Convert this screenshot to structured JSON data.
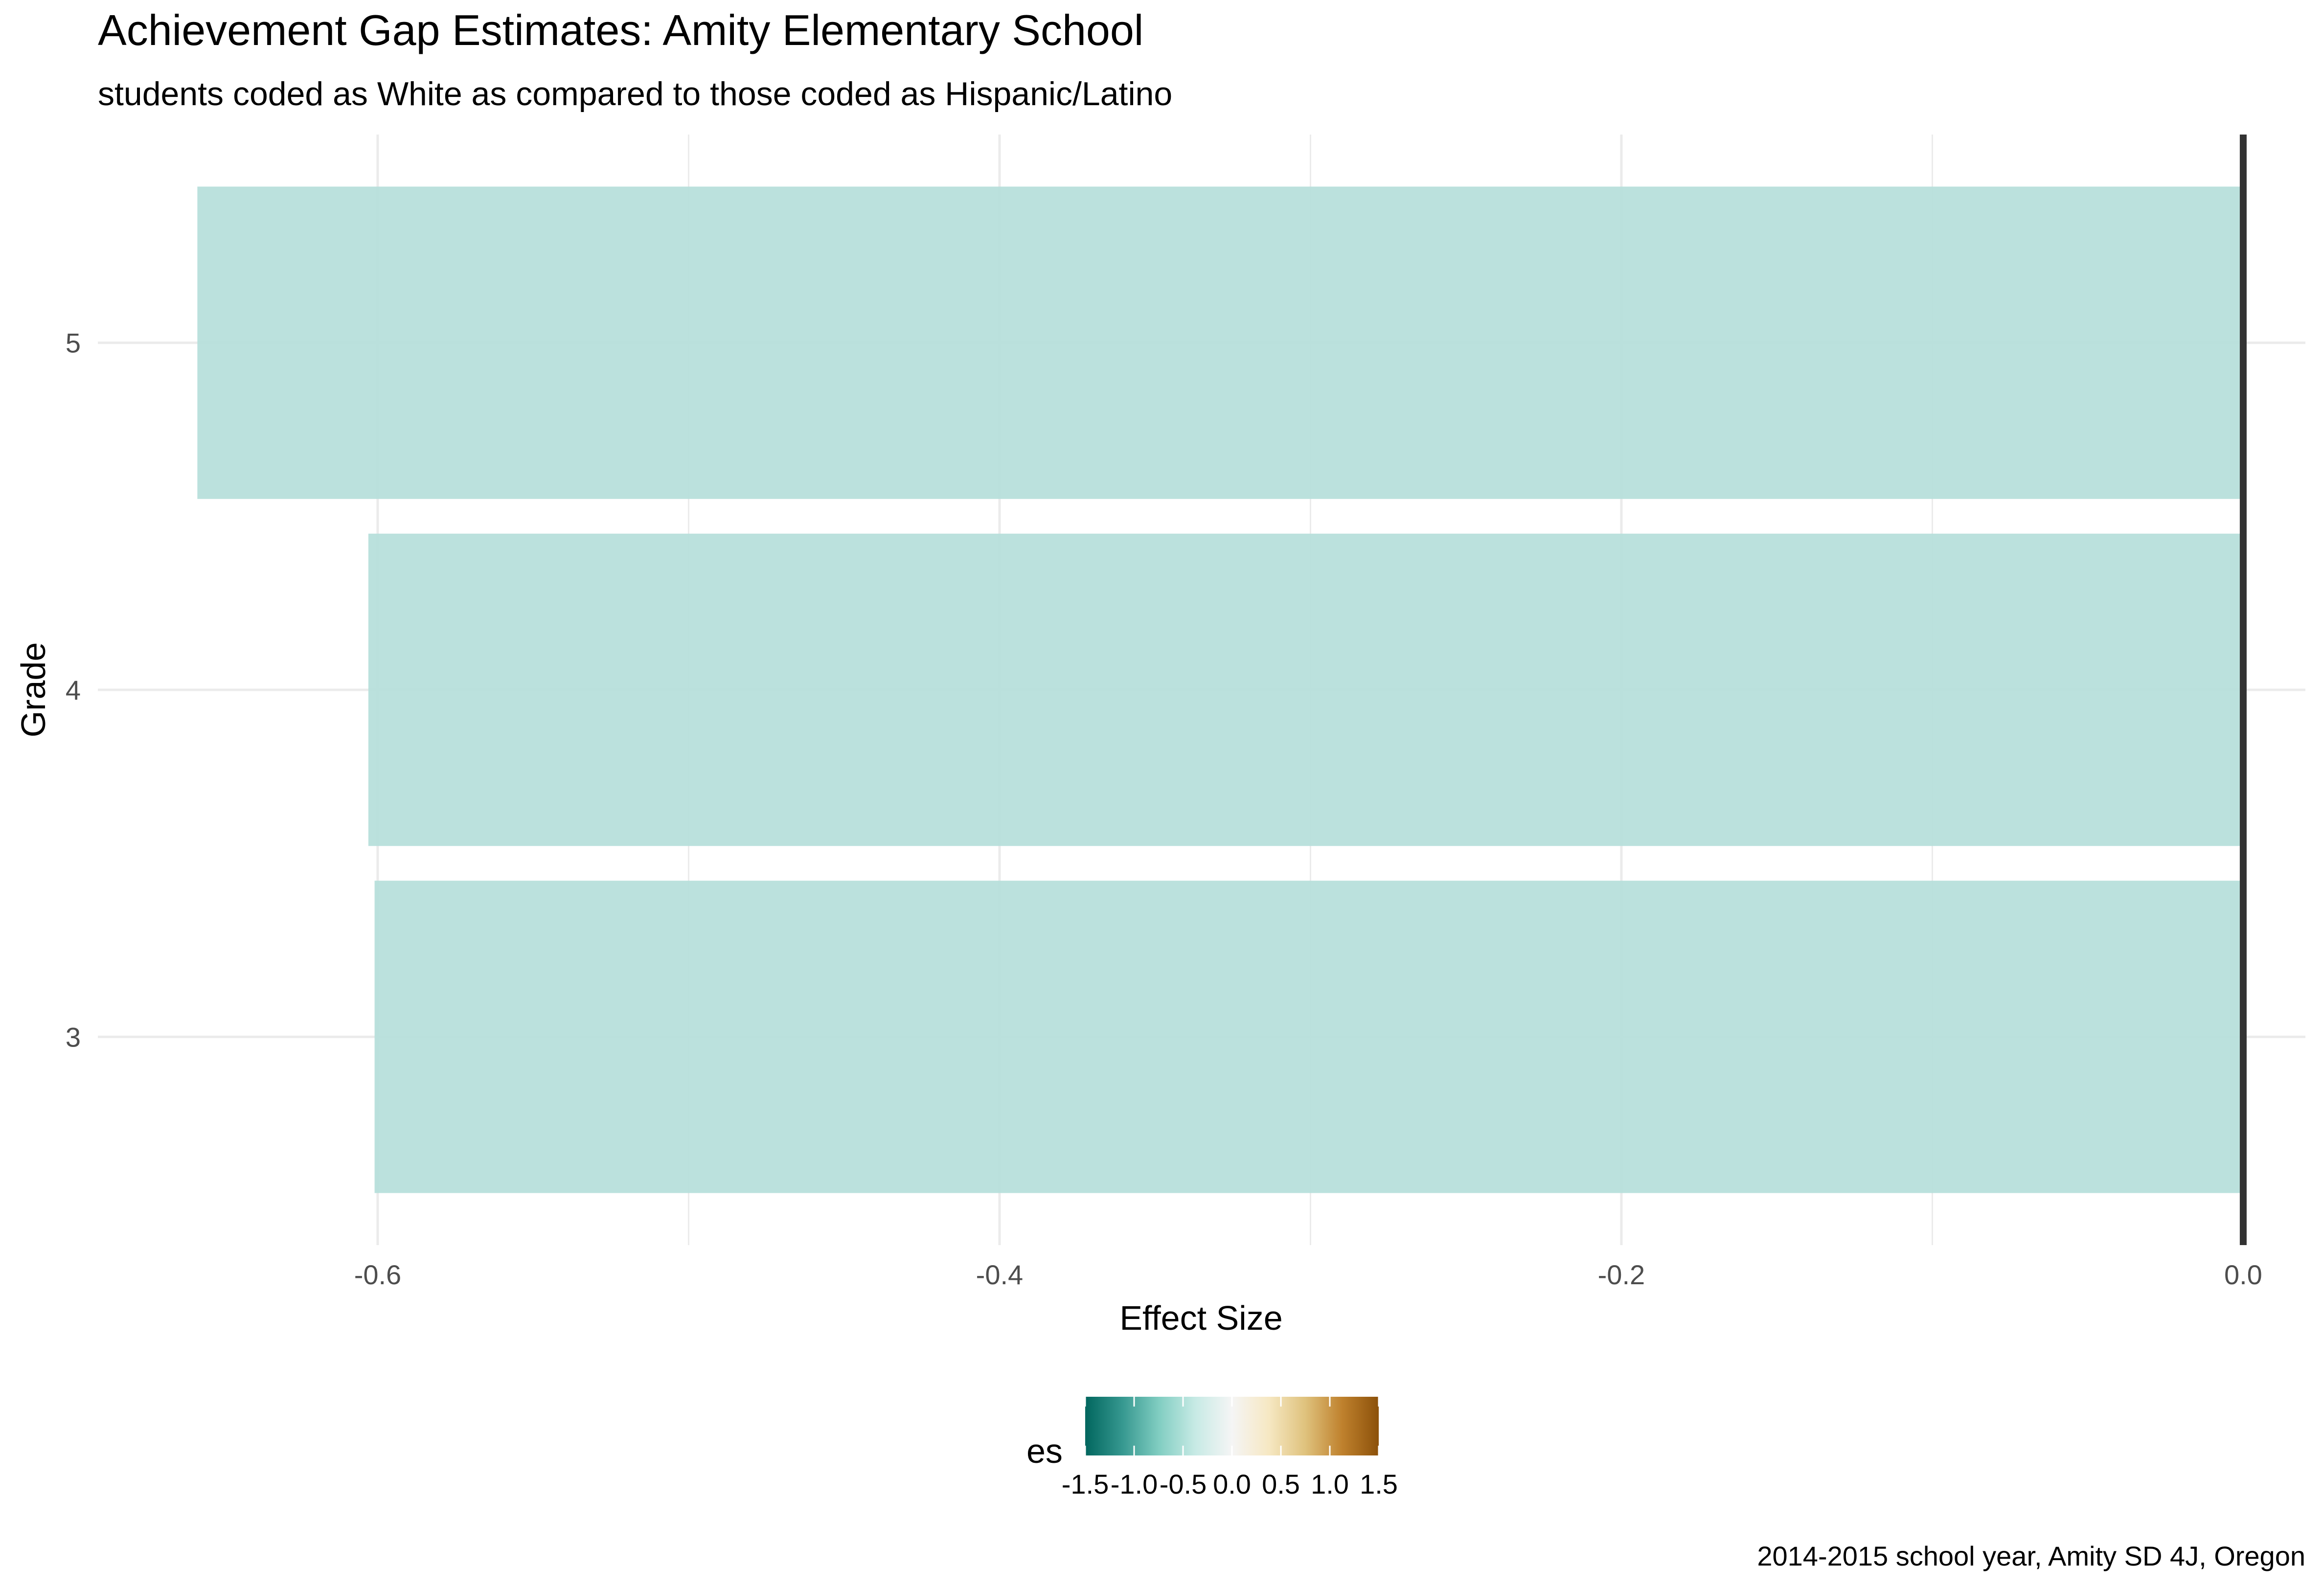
{
  "chart_data": {
    "type": "bar",
    "orientation": "horizontal",
    "title": "Achievement Gap Estimates: Amity Elementary School",
    "subtitle": "students coded as White as compared to those coded as Hispanic/Latino",
    "caption": "2014-2015 school year, Amity SD 4J, Oregon",
    "xlabel": "Effect Size",
    "ylabel": "Grade",
    "categories": [
      "3",
      "4",
      "5"
    ],
    "values": [
      -0.601,
      -0.603,
      -0.658
    ],
    "xlim": [
      -0.69,
      0.02
    ],
    "x_ticks": [
      -0.6,
      -0.4,
      -0.2,
      0.0
    ],
    "x_tick_labels": [
      "-0.6",
      "-0.4",
      "-0.2",
      "0.0"
    ],
    "reference_line": 0,
    "grid": true,
    "fill_scale": {
      "name": "es",
      "limits": [
        -1.5,
        1.5
      ],
      "breaks": [
        -1.5,
        -1.0,
        -0.5,
        0.0,
        0.5,
        1.0,
        1.5
      ],
      "break_labels": [
        "-1.5",
        "-1.0",
        "-0.5",
        "0.0",
        "0.5",
        "1.0",
        "1.5"
      ],
      "palette": [
        "#01665e",
        "#35978f",
        "#80cdc1",
        "#c7eae5",
        "#f5f5f5",
        "#f6e8c3",
        "#dfc27d",
        "#bf812d",
        "#8c510a"
      ],
      "legend_position": "bottom"
    },
    "colors": {
      "bar_fill": "#b5deda",
      "reference_line": "#333333",
      "grid": "#ebebeb",
      "text": "#000000",
      "tick_text": "#4d4d4d"
    }
  }
}
